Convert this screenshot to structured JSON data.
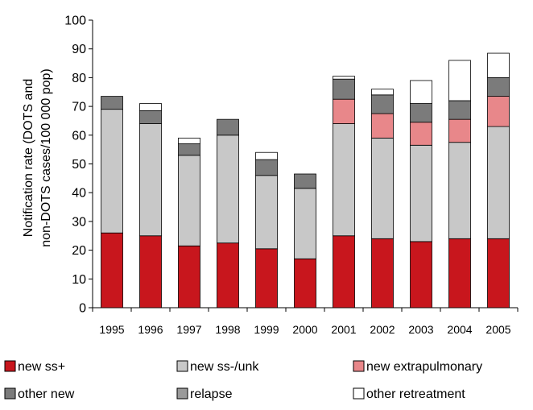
{
  "chart_data": {
    "type": "bar",
    "stacked": true,
    "categories": [
      "1995",
      "1996",
      "1997",
      "1998",
      "1999",
      "2000",
      "2001",
      "2002",
      "2003",
      "2004",
      "2005"
    ],
    "ylabel_lines": [
      "Notification rate (DOTS and",
      "non-DOTS cases/100 000 pop)"
    ],
    "xlabel": "",
    "ylim": [
      0,
      100
    ],
    "yticks": [
      0,
      10,
      20,
      30,
      40,
      50,
      60,
      70,
      80,
      90,
      100
    ],
    "grid": false,
    "legend_position": "bottom",
    "series": [
      {
        "name": "new ss+",
        "color": "#c8161d",
        "values": [
          26,
          25,
          21.5,
          22.5,
          20.5,
          17,
          25,
          24,
          23,
          24,
          24
        ]
      },
      {
        "name": "new ss-/unk",
        "color": "#c8c8c8",
        "values": [
          43,
          39,
          31.5,
          37.5,
          25.5,
          24.5,
          39,
          35,
          33.5,
          33.5,
          39
        ]
      },
      {
        "name": "new extrapulmonary",
        "color": "#e8878a",
        "values": [
          0,
          0,
          0,
          0,
          0,
          0,
          8.5,
          8.5,
          8,
          8,
          10.5
        ]
      },
      {
        "name": "other new",
        "color": "#7b7b7b",
        "values": [
          4.5,
          4.5,
          4,
          5.5,
          5.5,
          5,
          7,
          6.5,
          6.5,
          6.5,
          6.5
        ]
      },
      {
        "name": "relapse",
        "color": "#9a9a9a",
        "values": [
          0,
          0,
          0,
          0,
          0,
          0,
          0,
          0,
          0,
          0,
          0
        ]
      },
      {
        "name": "other retreatment",
        "color": "#ffffff",
        "values": [
          0,
          2.5,
          2,
          0,
          2.5,
          0,
          1,
          2,
          8,
          14,
          8.5
        ]
      }
    ]
  }
}
